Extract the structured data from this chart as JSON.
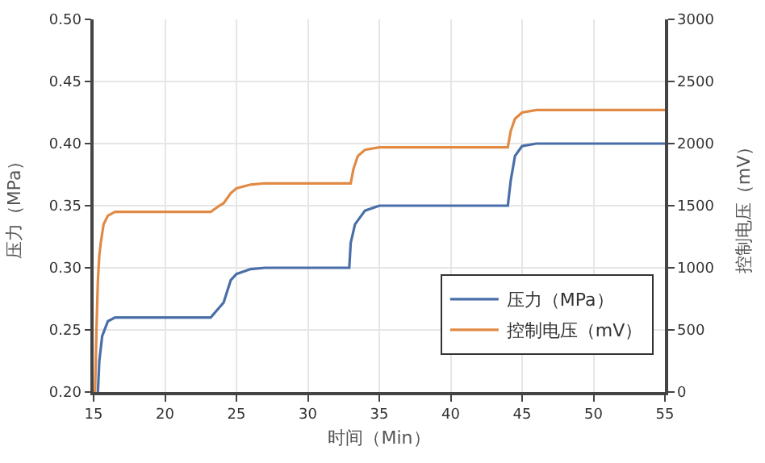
{
  "chart_data": {
    "type": "line",
    "xlabel": "时间（Min）",
    "ylabel": "压力（MPa）",
    "y2label": "控制电压（mV）",
    "xlim": [
      15,
      55
    ],
    "xticks": [
      15,
      20,
      25,
      30,
      35,
      40,
      45,
      50,
      55
    ],
    "ylim": [
      0.2,
      0.5
    ],
    "yticks": [
      {
        "value": 0.2,
        "label": "0.20"
      },
      {
        "value": 0.25,
        "label": "0.25"
      },
      {
        "value": 0.3,
        "label": "0.30"
      },
      {
        "value": 0.35,
        "label": "0.35"
      },
      {
        "value": 0.4,
        "label": "0.40"
      },
      {
        "value": 0.45,
        "label": "0.45"
      },
      {
        "value": 0.5,
        "label": "0.50"
      }
    ],
    "y2lim": [
      0,
      3000
    ],
    "y2ticks": [
      0,
      500,
      1000,
      1500,
      2000,
      2500,
      3000
    ],
    "grid": true,
    "legend": "bottom right",
    "marker": "none",
    "line_style": "solid",
    "series": [
      {
        "name": "压力（MPa）",
        "color": "#4a6fa8",
        "x": [
          15.3,
          15.4,
          15.6,
          16,
          16.5,
          23.2,
          23.8,
          24.1,
          24.6,
          25,
          26,
          27,
          32.9,
          33.0,
          33.3,
          34,
          35,
          44.0,
          44.2,
          44.5,
          45,
          46,
          55
        ],
        "values": [
          0.2,
          0.225,
          0.245,
          0.257,
          0.26,
          0.26,
          0.268,
          0.272,
          0.29,
          0.295,
          0.299,
          0.3,
          0.3,
          0.32,
          0.335,
          0.346,
          0.35,
          0.35,
          0.37,
          0.39,
          0.398,
          0.4,
          0.4
        ]
      },
      {
        "name": "控制电压（mV）",
        "color": "#e08a45",
        "axis": "y2",
        "x": [
          15.1,
          15.2,
          15.3,
          15.4,
          15.5,
          15.7,
          16,
          16.5,
          23.2,
          23.8,
          24.1,
          24.6,
          25,
          26,
          27,
          33.0,
          33.2,
          33.5,
          34,
          35,
          44.0,
          44.2,
          44.5,
          45,
          46,
          55
        ],
        "values": [
          0,
          500,
          900,
          1100,
          1200,
          1350,
          1420,
          1450,
          1450,
          1500,
          1520,
          1600,
          1640,
          1670,
          1680,
          1680,
          1800,
          1900,
          1950,
          1970,
          1970,
          2100,
          2200,
          2250,
          2270,
          2270
        ]
      }
    ]
  }
}
